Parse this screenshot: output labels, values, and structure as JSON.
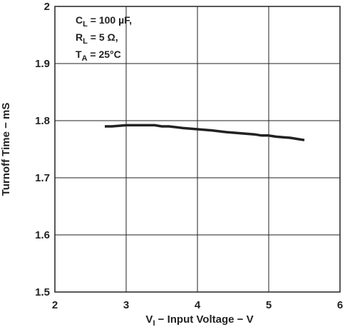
{
  "chart_data": {
    "type": "line",
    "title": "",
    "xlabel": {
      "main": "V",
      "sub": "I",
      "rest": " − Input Voltage − V"
    },
    "ylabel": "Turnoff Time − mS",
    "xlim": [
      2,
      6
    ],
    "ylim": [
      1.5,
      2.0
    ],
    "xticks": [
      "2",
      "3",
      "4",
      "5",
      "6"
    ],
    "yticks": [
      "1.5",
      "1.6",
      "1.7",
      "1.8",
      "1.9",
      "2"
    ],
    "grid": true,
    "annotations": [
      {
        "main": "C",
        "sub": "L",
        "rest": " = 100 µF,"
      },
      {
        "main": "R",
        "sub": "L",
        "rest": " = 5 Ω,"
      },
      {
        "main": "T",
        "sub": "A",
        "rest": " = 25°C"
      }
    ],
    "series": [
      {
        "x": [
          2.7,
          2.8,
          3.0,
          3.2,
          3.4,
          3.5,
          3.6,
          3.8,
          4.0,
          4.2,
          4.4,
          4.6,
          4.8,
          4.9,
          5.0,
          5.1,
          5.2,
          5.3,
          5.4,
          5.5
        ],
        "y": [
          1.79,
          1.79,
          1.792,
          1.792,
          1.792,
          1.79,
          1.79,
          1.787,
          1.785,
          1.783,
          1.78,
          1.778,
          1.776,
          1.774,
          1.774,
          1.772,
          1.771,
          1.77,
          1.768,
          1.766
        ]
      }
    ]
  }
}
